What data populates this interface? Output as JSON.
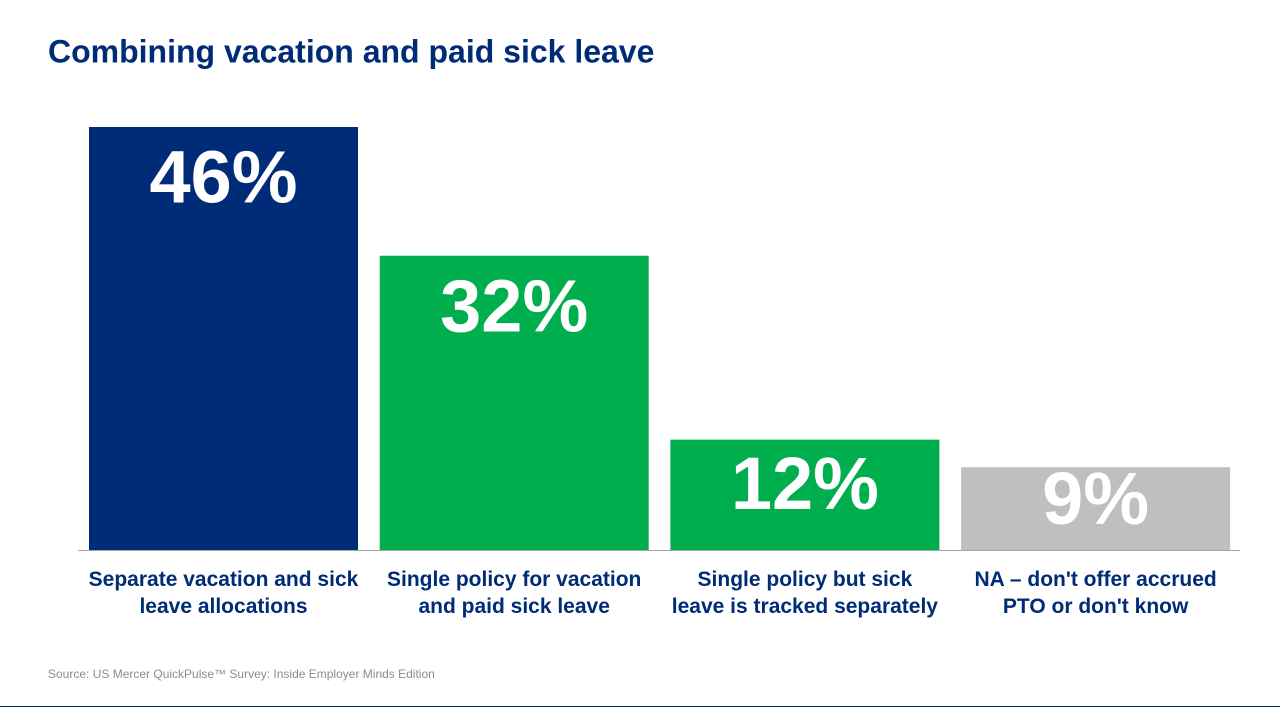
{
  "chart_data": {
    "type": "bar",
    "title": "Combining vacation and paid sick leave",
    "categories": [
      "Separate vacation and sick leave allocations",
      "Single policy for vacation and paid sick leave",
      "Single policy but sick leave is tracked separately",
      "NA – don't offer accrued PTO or don't know"
    ],
    "values": [
      46,
      32,
      12,
      9
    ],
    "value_labels": [
      "46%",
      "32%",
      "12%",
      "9%"
    ],
    "colors": [
      "#002c77",
      "#00ae4d",
      "#00ae4d",
      "#bfbfbf"
    ],
    "source": "Source: US Mercer QuickPulse™ Survey: Inside Employer Minds Edition"
  }
}
